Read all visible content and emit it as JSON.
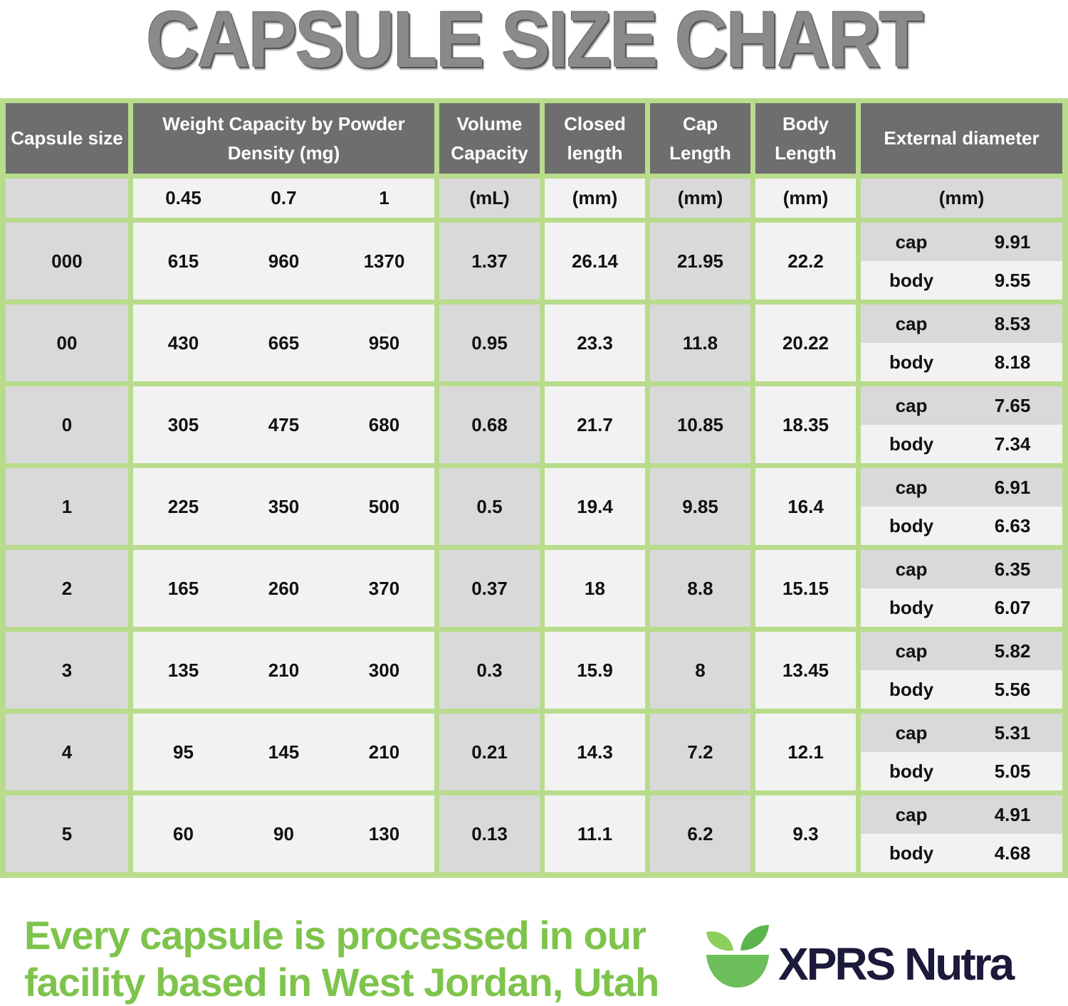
{
  "title": "CAPSULE SIZE CHART",
  "table": {
    "headers": [
      "Capsule size",
      "Weight Capacity by Powder Density (mg)",
      "Volume Capacity",
      "Closed length",
      "Cap Length",
      "Body Length",
      "External diameter"
    ],
    "densities": [
      "0.45",
      "0.7",
      "1"
    ],
    "units": [
      "(mL)",
      "(mm)",
      "(mm)",
      "(mm)",
      "(mm)"
    ],
    "rows": [
      {
        "size": "000",
        "weights": [
          "615",
          "960",
          "1370"
        ],
        "volume": "1.37",
        "closed": "26.14",
        "cap": "21.95",
        "body": "22.2",
        "diameter": [
          {
            "part": "cap",
            "value": "9.91"
          },
          {
            "part": "body",
            "value": "9.55"
          }
        ]
      },
      {
        "size": "00",
        "weights": [
          "430",
          "665",
          "950"
        ],
        "volume": "0.95",
        "closed": "23.3",
        "cap": "11.8",
        "body": "20.22",
        "diameter": [
          {
            "part": "cap",
            "value": "8.53"
          },
          {
            "part": "body",
            "value": "8.18"
          }
        ]
      },
      {
        "size": "0",
        "weights": [
          "305",
          "475",
          "680"
        ],
        "volume": "0.68",
        "closed": "21.7",
        "cap": "10.85",
        "body": "18.35",
        "diameter": [
          {
            "part": "cap",
            "value": "7.65"
          },
          {
            "part": "body",
            "value": "7.34"
          }
        ]
      },
      {
        "size": "1",
        "weights": [
          "225",
          "350",
          "500"
        ],
        "volume": "0.5",
        "closed": "19.4",
        "cap": "9.85",
        "body": "16.4",
        "diameter": [
          {
            "part": "cap",
            "value": "6.91"
          },
          {
            "part": "body",
            "value": "6.63"
          }
        ]
      },
      {
        "size": "2",
        "weights": [
          "165",
          "260",
          "370"
        ],
        "volume": "0.37",
        "closed": "18",
        "cap": "8.8",
        "body": "15.15",
        "diameter": [
          {
            "part": "cap",
            "value": "6.35"
          },
          {
            "part": "body",
            "value": "6.07"
          }
        ]
      },
      {
        "size": "3",
        "weights": [
          "135",
          "210",
          "300"
        ],
        "volume": "0.3",
        "closed": "15.9",
        "cap": "8",
        "body": "13.45",
        "diameter": [
          {
            "part": "cap",
            "value": "5.82"
          },
          {
            "part": "body",
            "value": "5.56"
          }
        ]
      },
      {
        "size": "4",
        "weights": [
          "95",
          "145",
          "210"
        ],
        "volume": "0.21",
        "closed": "14.3",
        "cap": "7.2",
        "body": "12.1",
        "diameter": [
          {
            "part": "cap",
            "value": "5.31"
          },
          {
            "part": "body",
            "value": "5.05"
          }
        ]
      },
      {
        "size": "5",
        "weights": [
          "60",
          "90",
          "130"
        ],
        "volume": "0.13",
        "closed": "11.1",
        "cap": "6.2",
        "body": "9.3",
        "diameter": [
          {
            "part": "cap",
            "value": "4.91"
          },
          {
            "part": "body",
            "value": "4.68"
          }
        ]
      }
    ]
  },
  "footer": {
    "tagline": [
      "Every capsule is processed in our",
      "facility based in West Jordan, Utah"
    ],
    "brand": "XPRS Nutra"
  }
}
